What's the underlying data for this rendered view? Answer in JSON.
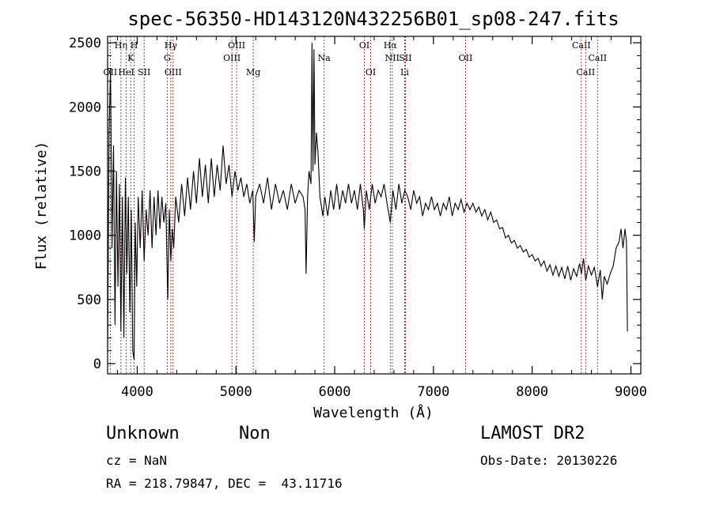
{
  "chart_data": {
    "type": "line",
    "title": "spec-56350-HD143120N432256B01_sp08-247.fits",
    "xlabel": "Wavelength (Å)",
    "ylabel": "Flux (relative)",
    "xlim": [
      3700,
      9100
    ],
    "ylim": [
      -80,
      2550
    ],
    "xticks": [
      4000,
      5000,
      6000,
      7000,
      8000,
      9000
    ],
    "yticks": [
      0,
      500,
      1000,
      1500,
      2000,
      2500
    ],
    "grid": false,
    "series": [
      {
        "points": [
          [
            3700,
            100
          ],
          [
            3715,
            1800
          ],
          [
            3730,
            2300
          ],
          [
            3745,
            900
          ],
          [
            3760,
            1700
          ],
          [
            3775,
            300
          ],
          [
            3790,
            1500
          ],
          [
            3805,
            600
          ],
          [
            3820,
            1400
          ],
          [
            3835,
            250
          ],
          [
            3850,
            1300
          ],
          [
            3865,
            200
          ],
          [
            3880,
            1450
          ],
          [
            3895,
            700
          ],
          [
            3910,
            1300
          ],
          [
            3925,
            400
          ],
          [
            3940,
            1200
          ],
          [
            3955,
            100
          ],
          [
            3968,
            30
          ],
          [
            3980,
            1100
          ],
          [
            3995,
            600
          ],
          [
            4010,
            1300
          ],
          [
            4030,
            900
          ],
          [
            4050,
            1350
          ],
          [
            4070,
            800
          ],
          [
            4090,
            1200
          ],
          [
            4110,
            1000
          ],
          [
            4130,
            1350
          ],
          [
            4150,
            900
          ],
          [
            4170,
            1300
          ],
          [
            4190,
            1000
          ],
          [
            4210,
            1350
          ],
          [
            4230,
            1050
          ],
          [
            4250,
            1300
          ],
          [
            4270,
            1100
          ],
          [
            4290,
            1250
          ],
          [
            4310,
            500
          ],
          [
            4325,
            1200
          ],
          [
            4340,
            800
          ],
          [
            4355,
            1050
          ],
          [
            4370,
            900
          ],
          [
            4390,
            1300
          ],
          [
            4420,
            1100
          ],
          [
            4450,
            1400
          ],
          [
            4480,
            1150
          ],
          [
            4510,
            1450
          ],
          [
            4540,
            1200
          ],
          [
            4570,
            1500
          ],
          [
            4600,
            1250
          ],
          [
            4630,
            1600
          ],
          [
            4660,
            1300
          ],
          [
            4690,
            1550
          ],
          [
            4720,
            1250
          ],
          [
            4750,
            1600
          ],
          [
            4780,
            1300
          ],
          [
            4810,
            1550
          ],
          [
            4840,
            1350
          ],
          [
            4870,
            1700
          ],
          [
            4900,
            1400
          ],
          [
            4930,
            1550
          ],
          [
            4960,
            1300
          ],
          [
            4990,
            1500
          ],
          [
            5020,
            1350
          ],
          [
            5050,
            1450
          ],
          [
            5080,
            1300
          ],
          [
            5110,
            1400
          ],
          [
            5140,
            1250
          ],
          [
            5170,
            1350
          ],
          [
            5185,
            950
          ],
          [
            5200,
            1300
          ],
          [
            5240,
            1400
          ],
          [
            5280,
            1250
          ],
          [
            5320,
            1450
          ],
          [
            5360,
            1200
          ],
          [
            5400,
            1400
          ],
          [
            5440,
            1250
          ],
          [
            5480,
            1350
          ],
          [
            5520,
            1200
          ],
          [
            5560,
            1400
          ],
          [
            5600,
            1250
          ],
          [
            5640,
            1350
          ],
          [
            5680,
            1300
          ],
          [
            5700,
            1200
          ],
          [
            5710,
            700
          ],
          [
            5725,
            1300
          ],
          [
            5740,
            1500
          ],
          [
            5760,
            1400
          ],
          [
            5770,
            2500
          ],
          [
            5780,
            1500
          ],
          [
            5790,
            2450
          ],
          [
            5800,
            1550
          ],
          [
            5815,
            1800
          ],
          [
            5830,
            1650
          ],
          [
            5850,
            1300
          ],
          [
            5880,
            1150
          ],
          [
            5900,
            1300
          ],
          [
            5930,
            1150
          ],
          [
            5960,
            1350
          ],
          [
            5990,
            1200
          ],
          [
            6020,
            1400
          ],
          [
            6050,
            1200
          ],
          [
            6080,
            1350
          ],
          [
            6110,
            1250
          ],
          [
            6140,
            1400
          ],
          [
            6170,
            1250
          ],
          [
            6200,
            1350
          ],
          [
            6230,
            1200
          ],
          [
            6260,
            1400
          ],
          [
            6290,
            1200
          ],
          [
            6300,
            1050
          ],
          [
            6320,
            1350
          ],
          [
            6350,
            1200
          ],
          [
            6380,
            1400
          ],
          [
            6410,
            1250
          ],
          [
            6440,
            1350
          ],
          [
            6470,
            1300
          ],
          [
            6500,
            1400
          ],
          [
            6530,
            1250
          ],
          [
            6563,
            1100
          ],
          [
            6590,
            1350
          ],
          [
            6620,
            1200
          ],
          [
            6650,
            1400
          ],
          [
            6680,
            1250
          ],
          [
            6710,
            1350
          ],
          [
            6740,
            1300
          ],
          [
            6770,
            1200
          ],
          [
            6800,
            1350
          ],
          [
            6830,
            1250
          ],
          [
            6860,
            1300
          ],
          [
            6890,
            1150
          ],
          [
            6920,
            1250
          ],
          [
            6950,
            1200
          ],
          [
            6980,
            1300
          ],
          [
            7010,
            1200
          ],
          [
            7040,
            1250
          ],
          [
            7070,
            1150
          ],
          [
            7100,
            1250
          ],
          [
            7130,
            1200
          ],
          [
            7160,
            1300
          ],
          [
            7190,
            1150
          ],
          [
            7220,
            1250
          ],
          [
            7250,
            1200
          ],
          [
            7280,
            1280
          ],
          [
            7310,
            1180
          ],
          [
            7340,
            1250
          ],
          [
            7370,
            1200
          ],
          [
            7400,
            1250
          ],
          [
            7430,
            1180
          ],
          [
            7460,
            1220
          ],
          [
            7490,
            1150
          ],
          [
            7520,
            1200
          ],
          [
            7550,
            1120
          ],
          [
            7580,
            1180
          ],
          [
            7610,
            1100
          ],
          [
            7640,
            1120
          ],
          [
            7670,
            1050
          ],
          [
            7700,
            1060
          ],
          [
            7730,
            980
          ],
          [
            7760,
            1000
          ],
          [
            7790,
            940
          ],
          [
            7820,
            960
          ],
          [
            7850,
            900
          ],
          [
            7880,
            920
          ],
          [
            7910,
            870
          ],
          [
            7940,
            890
          ],
          [
            7970,
            830
          ],
          [
            8000,
            850
          ],
          [
            8030,
            800
          ],
          [
            8060,
            820
          ],
          [
            8090,
            760
          ],
          [
            8120,
            800
          ],
          [
            8150,
            720
          ],
          [
            8180,
            770
          ],
          [
            8210,
            690
          ],
          [
            8240,
            760
          ],
          [
            8270,
            680
          ],
          [
            8300,
            750
          ],
          [
            8330,
            660
          ],
          [
            8360,
            760
          ],
          [
            8390,
            650
          ],
          [
            8420,
            740
          ],
          [
            8450,
            680
          ],
          [
            8480,
            780
          ],
          [
            8498,
            700
          ],
          [
            8520,
            820
          ],
          [
            8542,
            650
          ],
          [
            8570,
            760
          ],
          [
            8600,
            690
          ],
          [
            8630,
            750
          ],
          [
            8662,
            600
          ],
          [
            8690,
            730
          ],
          [
            8710,
            500
          ],
          [
            8730,
            680
          ],
          [
            8760,
            620
          ],
          [
            8790,
            700
          ],
          [
            8820,
            760
          ],
          [
            8850,
            900
          ],
          [
            8880,
            950
          ],
          [
            8900,
            1050
          ],
          [
            8920,
            900
          ],
          [
            8940,
            1050
          ],
          [
            8955,
            950
          ],
          [
            8965,
            250
          ]
        ]
      }
    ],
    "lines": [
      {
        "label": "OII",
        "x": 3727,
        "row": 3
      },
      {
        "label": "Hη",
        "x": 3835,
        "row": 1
      },
      {
        "label": "HeI",
        "x": 3889,
        "row": 3
      },
      {
        "label": "K",
        "x": 3934,
        "row": 2
      },
      {
        "label": "H",
        "x": 3969,
        "row": 1
      },
      {
        "label": "SII",
        "x": 4070,
        "row": 3
      },
      {
        "label": "Hγ",
        "x": 4340,
        "row": 1
      },
      {
        "label": "G",
        "x": 4304,
        "row": 2
      },
      {
        "label": "OIII",
        "x": 4363,
        "row": 3
      },
      {
        "label": "OIII",
        "x": 4959,
        "row": 2
      },
      {
        "label": "OIII",
        "x": 5007,
        "row": 1
      },
      {
        "label": "Mg",
        "x": 5175,
        "row": 3
      },
      {
        "label": "Na",
        "x": 5893,
        "row": 2
      },
      {
        "label": "OI",
        "x": 6300,
        "row": 1
      },
      {
        "label": "OI",
        "x": 6364,
        "row": 3
      },
      {
        "label": "Hα",
        "x": 6563,
        "row": 1
      },
      {
        "label": "NII",
        "x": 6583,
        "row": 2
      },
      {
        "label": "SII",
        "x": 6716,
        "row": 2
      },
      {
        "label": "Li",
        "x": 6708,
        "row": 3
      },
      {
        "label": "OII",
        "x": 7325,
        "row": 2
      },
      {
        "label": "CaII",
        "x": 8498,
        "row": 1
      },
      {
        "label": "CaII",
        "x": 8542,
        "row": 3
      },
      {
        "label": "CaII",
        "x": 8662,
        "row": 2
      }
    ]
  },
  "info": {
    "class": "Unknown",
    "subclass": "Non",
    "cz": "cz = NaN",
    "coords": "RA = 218.79847, DEC =  43.11716",
    "survey": "LAMOST DR2",
    "obs_date": "Obs-Date: 20130226"
  },
  "colors": {
    "spectrum": "#000000",
    "line_marker": "#b22222"
  }
}
